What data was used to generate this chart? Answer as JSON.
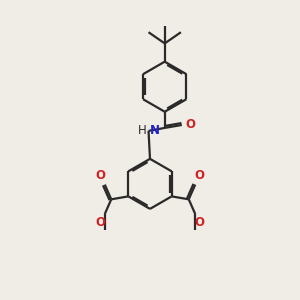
{
  "background_color": "#f0ece6",
  "bond_color": "#2a2a2a",
  "nitrogen_color": "#2222cc",
  "oxygen_color": "#cc2222",
  "line_width": 1.6,
  "dbo": 0.055,
  "font_size_atom": 8.5,
  "fig_size": [
    3.0,
    3.0
  ],
  "dpi": 100,
  "xlim": [
    0,
    10
  ],
  "ylim": [
    0,
    10
  ]
}
